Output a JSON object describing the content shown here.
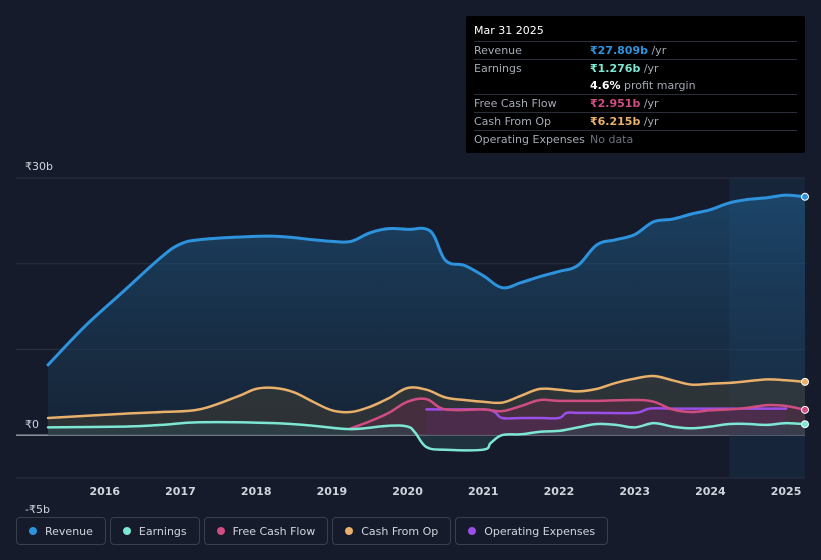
{
  "tooltip": {
    "date": "Mar 31 2025",
    "rows": [
      {
        "label": "Revenue",
        "value": "₹27.809b",
        "unit": " /yr",
        "color": "#2e93dd"
      },
      {
        "label": "Earnings",
        "value": "₹1.276b",
        "unit": " /yr",
        "color": "#7ee7d3"
      },
      {
        "label": "",
        "value": "4.6%",
        "unit": " profit margin",
        "color": "#ffffff"
      },
      {
        "label": "Free Cash Flow",
        "value": "₹2.951b",
        "unit": " /yr",
        "color": "#d04d82"
      },
      {
        "label": "Cash From Op",
        "value": "₹6.215b",
        "unit": " /yr",
        "color": "#e8b06a"
      },
      {
        "label": "Operating Expenses",
        "value": "No data",
        "unit": "",
        "color": "#6c717c"
      }
    ]
  },
  "legend": [
    {
      "label": "Revenue",
      "color": "#2e93dd"
    },
    {
      "label": "Earnings",
      "color": "#7ee7d3"
    },
    {
      "label": "Free Cash Flow",
      "color": "#d04d82"
    },
    {
      "label": "Cash From Op",
      "color": "#e8b06a"
    },
    {
      "label": "Operating Expenses",
      "color": "#9b4ee8"
    }
  ],
  "chart_data": {
    "type": "area",
    "title": "",
    "xlabel": "",
    "ylabel": "",
    "currency": "₹",
    "ylim": [
      -5,
      30
    ],
    "y_tick_labels": [
      "₹30b",
      "₹0",
      "-₹5b"
    ],
    "y_tick_values": [
      30,
      0,
      -5
    ],
    "x_tick_labels": [
      "2016",
      "2017",
      "2018",
      "2019",
      "2020",
      "2021",
      "2022",
      "2023",
      "2024",
      "2025"
    ],
    "x_tick_values": [
      2016,
      2017,
      2018,
      2019,
      2020,
      2021,
      2022,
      2023,
      2024,
      2025
    ],
    "xlim": [
      2015.2,
      2025.25
    ],
    "forecast_shade_start": 2024.25,
    "series": [
      {
        "name": "Revenue",
        "color": "#2e93dd",
        "x": [
          2015.25,
          2015.75,
          2016.25,
          2016.75,
          2017.0,
          2017.25,
          2017.75,
          2018.25,
          2018.75,
          2019.0,
          2019.25,
          2019.5,
          2019.75,
          2020.0,
          2020.3,
          2020.5,
          2020.75,
          2021.0,
          2021.25,
          2021.5,
          2021.75,
          2022.0,
          2022.25,
          2022.5,
          2022.75,
          2023.0,
          2023.25,
          2023.5,
          2023.75,
          2024.0,
          2024.25,
          2024.5,
          2024.75,
          2025.0,
          2025.25
        ],
        "values": [
          8.2,
          12.8,
          16.8,
          20.8,
          22.3,
          22.8,
          23.1,
          23.2,
          22.8,
          22.6,
          22.6,
          23.6,
          24.1,
          24.0,
          23.8,
          20.4,
          19.8,
          18.6,
          17.2,
          17.8,
          18.5,
          19.1,
          19.8,
          22.2,
          22.8,
          23.4,
          24.9,
          25.2,
          25.8,
          26.3,
          27.1,
          27.5,
          27.7,
          28.0,
          27.809
        ]
      },
      {
        "name": "Earnings",
        "color": "#7ee7d3",
        "x": [
          2015.25,
          2016.25,
          2016.75,
          2017.25,
          2018.25,
          2018.75,
          2019.25,
          2019.75,
          2020.0,
          2020.1,
          2020.25,
          2020.5,
          2021.0,
          2021.1,
          2021.25,
          2021.5,
          2021.75,
          2022.0,
          2022.25,
          2022.5,
          2022.75,
          2023.0,
          2023.25,
          2023.5,
          2023.75,
          2024.0,
          2024.25,
          2024.5,
          2024.75,
          2025.0,
          2025.25
        ],
        "values": [
          0.9,
          1.0,
          1.2,
          1.5,
          1.4,
          1.1,
          0.7,
          1.1,
          1.0,
          0.3,
          -1.4,
          -1.7,
          -1.7,
          -0.9,
          0.0,
          0.1,
          0.4,
          0.5,
          0.9,
          1.3,
          1.2,
          0.9,
          1.4,
          1.0,
          0.8,
          1.0,
          1.3,
          1.3,
          1.2,
          1.4,
          1.276
        ]
      },
      {
        "name": "Free Cash Flow",
        "color": "#d04d82",
        "x": [
          2019.25,
          2019.5,
          2019.75,
          2020.0,
          2020.25,
          2020.5,
          2021.0,
          2021.25,
          2021.5,
          2021.75,
          2022.0,
          2022.5,
          2023.0,
          2023.25,
          2023.5,
          2023.75,
          2024.0,
          2024.25,
          2024.5,
          2024.75,
          2025.0,
          2025.25
        ],
        "values": [
          0.8,
          1.6,
          2.6,
          3.9,
          4.2,
          3.0,
          3.0,
          2.8,
          3.4,
          4.1,
          4.0,
          4.0,
          4.1,
          3.9,
          3.0,
          2.7,
          2.9,
          3.0,
          3.2,
          3.5,
          3.4,
          2.951
        ]
      },
      {
        "name": "Cash From Op",
        "color": "#e8b06a",
        "x": [
          2015.25,
          2016.25,
          2016.75,
          2017.25,
          2017.75,
          2018.0,
          2018.25,
          2018.5,
          2018.75,
          2019.0,
          2019.25,
          2019.5,
          2019.75,
          2020.0,
          2020.25,
          2020.5,
          2020.75,
          2021.0,
          2021.25,
          2021.5,
          2021.75,
          2022.0,
          2022.25,
          2022.5,
          2022.75,
          2023.0,
          2023.25,
          2023.5,
          2023.75,
          2024.0,
          2024.25,
          2024.5,
          2024.75,
          2025.0,
          2025.25
        ],
        "values": [
          2.0,
          2.5,
          2.7,
          3.0,
          4.5,
          5.4,
          5.5,
          5.0,
          3.9,
          2.9,
          2.7,
          3.3,
          4.3,
          5.5,
          5.3,
          4.4,
          4.1,
          3.9,
          3.8,
          4.6,
          5.4,
          5.3,
          5.1,
          5.4,
          6.1,
          6.6,
          6.9,
          6.4,
          5.9,
          6.0,
          6.1,
          6.3,
          6.5,
          6.4,
          6.215
        ]
      },
      {
        "name": "Operating Expenses",
        "color": "#9b4ee8",
        "x": [
          2020.25,
          2020.5,
          2021.0,
          2021.15,
          2021.25,
          2021.5,
          2021.75,
          2022.0,
          2022.1,
          2022.25,
          2022.5,
          2023.0,
          2023.2,
          2023.5,
          2024.0,
          2024.5,
          2025.0
        ],
        "values": [
          3.0,
          3.0,
          3.0,
          2.7,
          2.0,
          2.0,
          2.0,
          2.0,
          2.6,
          2.6,
          2.6,
          2.6,
          3.1,
          3.1,
          3.1,
          3.1,
          3.1
        ]
      }
    ]
  }
}
